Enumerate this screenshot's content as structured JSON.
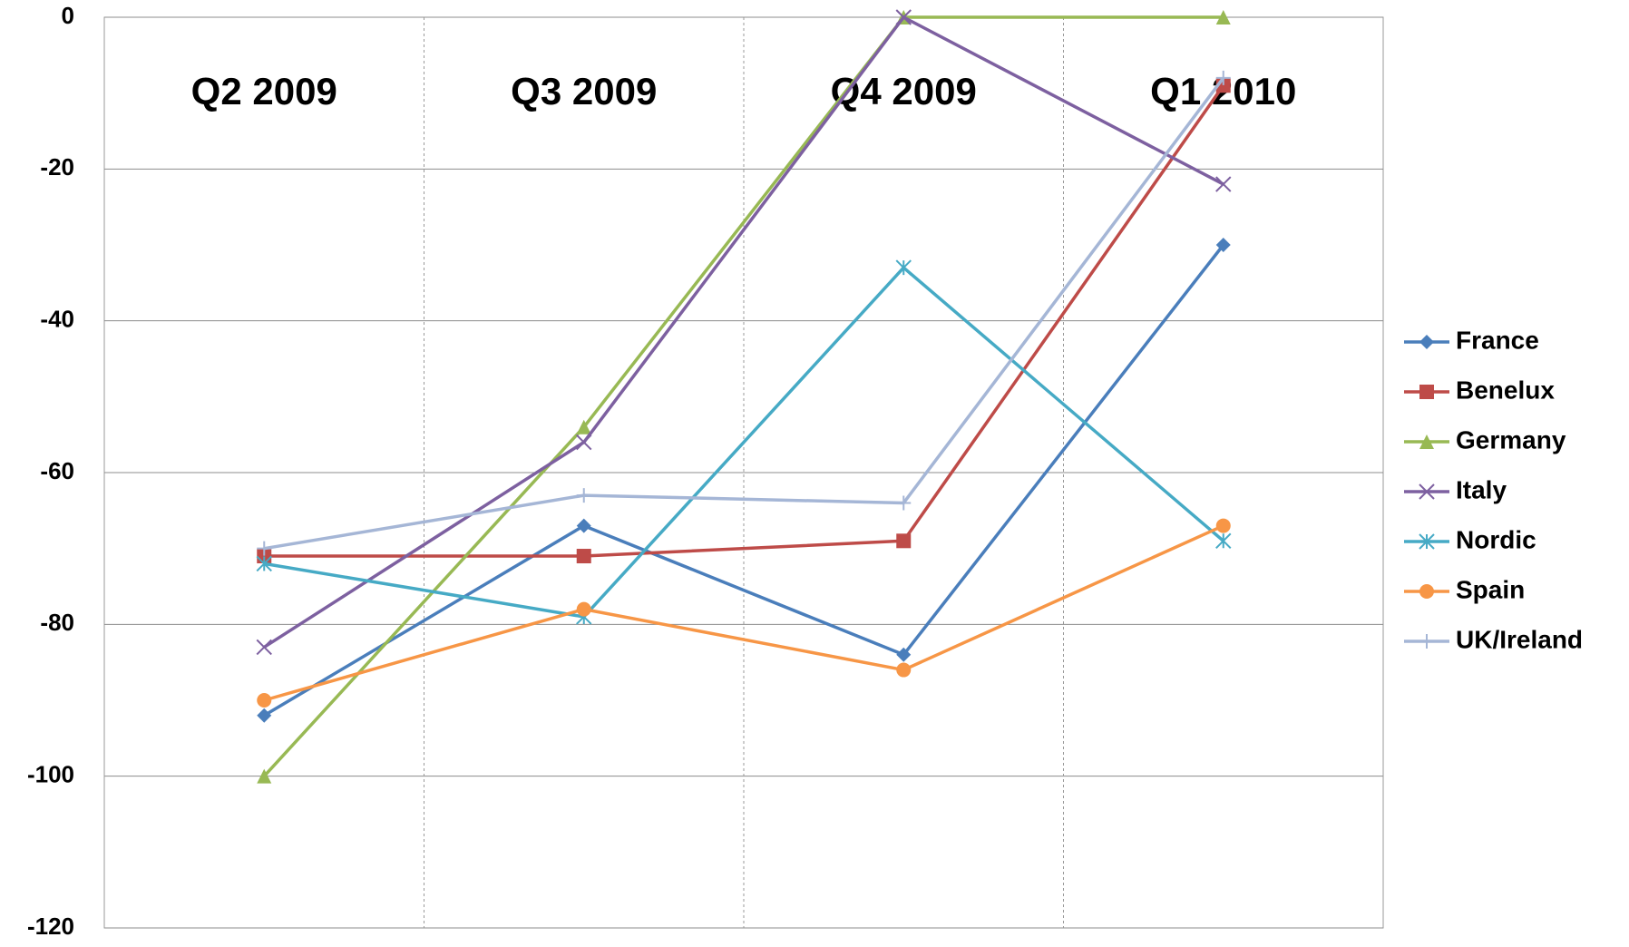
{
  "chart_data": {
    "type": "line",
    "categories": [
      "Q2 2009",
      "Q3 2009",
      "Q4 2009",
      "Q1 2010"
    ],
    "series": [
      {
        "name": "France",
        "color": "#4a7ebb",
        "marker": "diamond",
        "values": [
          -92,
          -67,
          -84,
          -30
        ]
      },
      {
        "name": "Benelux",
        "color": "#be4b48",
        "marker": "square",
        "values": [
          -71,
          -71,
          -69,
          -9
        ]
      },
      {
        "name": "Germany",
        "color": "#98b954",
        "marker": "triangle",
        "values": [
          -100,
          -54,
          0,
          0
        ]
      },
      {
        "name": "Italy",
        "color": "#7d60a0",
        "marker": "x",
        "values": [
          -83,
          -56,
          0,
          -22
        ]
      },
      {
        "name": "Nordic",
        "color": "#46aac5",
        "marker": "star",
        "values": [
          -72,
          -79,
          -33,
          -69
        ]
      },
      {
        "name": "Spain",
        "color": "#f79646",
        "marker": "circle",
        "values": [
          -90,
          -78,
          -86,
          -67
        ]
      },
      {
        "name": "UK/Ireland",
        "color": "#a5b6d6",
        "marker": "plus",
        "values": [
          -70,
          -63,
          -64,
          -8
        ]
      }
    ],
    "ylim": [
      -120,
      0
    ],
    "yticks": [
      -120,
      -100,
      -80,
      -60,
      -40,
      -20,
      0
    ],
    "grid": true,
    "legend": "right"
  }
}
